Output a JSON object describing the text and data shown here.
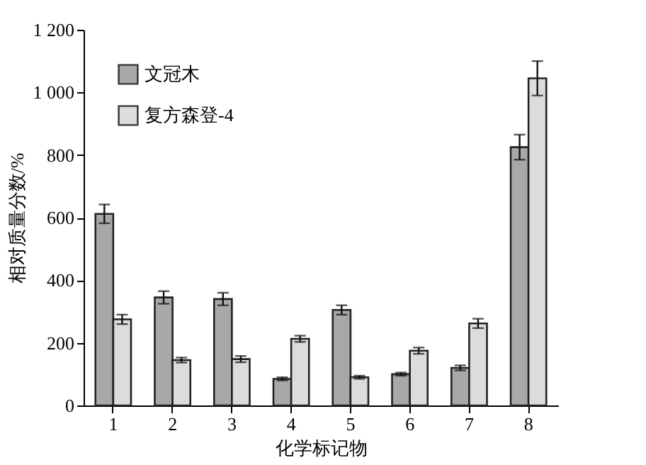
{
  "chart_data": {
    "type": "bar",
    "xlabel": "化学标记物",
    "ylabel": "相对质量分数/%",
    "categories": [
      "1",
      "2",
      "3",
      "4",
      "5",
      "6",
      "7",
      "8"
    ],
    "series": [
      {
        "name": "文冠木",
        "color": "#a8a8a8",
        "values": [
          612,
          345,
          340,
          85,
          305,
          100,
          120,
          825
        ],
        "errors": [
          30,
          20,
          20,
          5,
          15,
          5,
          8,
          40
        ]
      },
      {
        "name": "复方森登-4",
        "color": "#dcdcdc",
        "values": [
          275,
          145,
          148,
          213,
          90,
          175,
          262,
          1045
        ],
        "errors": [
          15,
          8,
          10,
          10,
          5,
          10,
          15,
          55
        ]
      }
    ],
    "ylim": [
      0,
      1200
    ],
    "yticks": [
      0,
      200,
      400,
      600,
      800,
      {
        "value": 1000,
        "label": "1 000"
      },
      {
        "value": 1200,
        "label": "1 200"
      }
    ],
    "grid": false,
    "legend": "top left"
  }
}
